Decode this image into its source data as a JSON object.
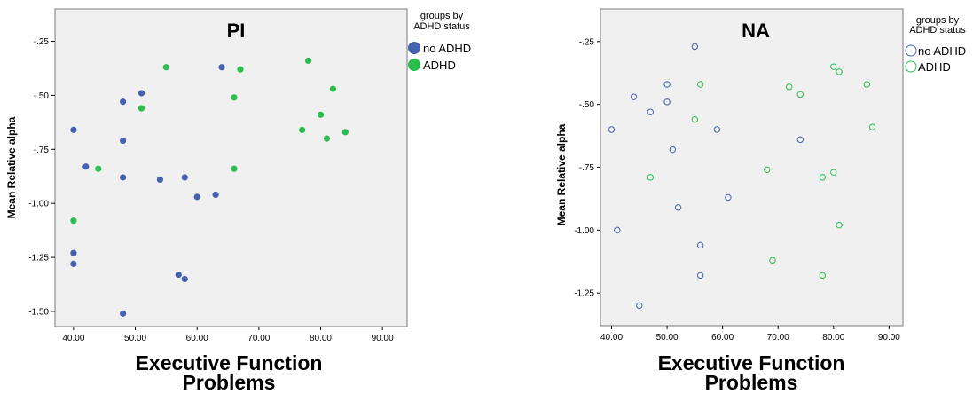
{
  "colors": {
    "no_adhd": "#4561b0",
    "adhd": "#2bbd4e",
    "plot_bg": "#f0f0f0",
    "frame": "#7a7a7a"
  },
  "chart_data": [
    {
      "type": "scatter",
      "title": "PI",
      "xlabel": [
        "Executive Function",
        "Problems"
      ],
      "ylabel": "Mean Relative alpha",
      "xlim": [
        37,
        94
      ],
      "ylim": [
        -1.57,
        -0.1
      ],
      "xticks": [
        "40.00",
        "50.00",
        "60.00",
        "70.00",
        "80.00",
        "90.00"
      ],
      "yticks": [
        "-.25",
        "-.50",
        "-.75",
        "-1.00",
        "-1.25",
        "-1.50"
      ],
      "marker": "filled",
      "legend": {
        "title": [
          "groups by",
          "ADHD status"
        ],
        "placement": "top-right-outside"
      },
      "series": [
        {
          "name": "no ADHD",
          "color_key": "no_adhd",
          "points": [
            [
              40,
              -0.66
            ],
            [
              42,
              -0.83
            ],
            [
              48,
              -0.53
            ],
            [
              48,
              -0.71
            ],
            [
              48,
              -0.88
            ],
            [
              51,
              -0.49
            ],
            [
              54,
              -0.89
            ],
            [
              58,
              -0.88
            ],
            [
              60,
              -0.97
            ],
            [
              63,
              -0.96
            ],
            [
              64,
              -0.37
            ],
            [
              40,
              -1.23
            ],
            [
              40,
              -1.28
            ],
            [
              57,
              -1.33
            ],
            [
              58,
              -1.35
            ],
            [
              48,
              -1.51
            ]
          ]
        },
        {
          "name": "ADHD",
          "color_key": "adhd",
          "points": [
            [
              55,
              -0.37
            ],
            [
              51,
              -0.56
            ],
            [
              44,
              -0.84
            ],
            [
              40,
              -1.08
            ],
            [
              66,
              -0.51
            ],
            [
              66,
              -0.84
            ],
            [
              67,
              -0.38
            ],
            [
              77,
              -0.66
            ],
            [
              78,
              -0.34
            ],
            [
              80,
              -0.59
            ],
            [
              81,
              -0.7
            ],
            [
              82,
              -0.47
            ],
            [
              84,
              -0.67
            ]
          ]
        }
      ]
    },
    {
      "type": "scatter",
      "title": "NA",
      "xlabel": [
        "Executive Function",
        "Problems"
      ],
      "ylabel": "Mean Relative alpha",
      "xlim": [
        38,
        92.5
      ],
      "ylim": [
        -1.38,
        -0.12
      ],
      "xticks": [
        "40.00",
        "50.00",
        "60.00",
        "70.00",
        "80.00",
        "90.00"
      ],
      "yticks": [
        "-.25",
        "-.50",
        "-.75",
        "-1.00",
        "-1.25"
      ],
      "marker": "hollow",
      "legend": {
        "title": [
          "groups by",
          "ADHD status"
        ],
        "placement": "top-right-outside"
      },
      "series": [
        {
          "name": "no ADHD",
          "color_key": "no_adhd",
          "points": [
            [
              55,
              -0.27
            ],
            [
              44,
              -0.47
            ],
            [
              47,
              -0.53
            ],
            [
              50,
              -0.42
            ],
            [
              50,
              -0.49
            ],
            [
              40,
              -0.6
            ],
            [
              51,
              -0.68
            ],
            [
              59,
              -0.6
            ],
            [
              74,
              -0.64
            ],
            [
              52,
              -0.91
            ],
            [
              61,
              -0.87
            ],
            [
              41,
              -1.0
            ],
            [
              56,
              -1.06
            ],
            [
              56,
              -1.18
            ],
            [
              45,
              -1.3
            ]
          ]
        },
        {
          "name": "ADHD",
          "color_key": "adhd",
          "points": [
            [
              56,
              -0.42
            ],
            [
              55,
              -0.56
            ],
            [
              47,
              -0.79
            ],
            [
              72,
              -0.43
            ],
            [
              74,
              -0.46
            ],
            [
              80,
              -0.35
            ],
            [
              81,
              -0.37
            ],
            [
              86,
              -0.42
            ],
            [
              87,
              -0.59
            ],
            [
              68,
              -0.76
            ],
            [
              78,
              -0.79
            ],
            [
              80,
              -0.77
            ],
            [
              81,
              -0.98
            ],
            [
              69,
              -1.12
            ],
            [
              78,
              -1.18
            ]
          ]
        }
      ]
    }
  ]
}
